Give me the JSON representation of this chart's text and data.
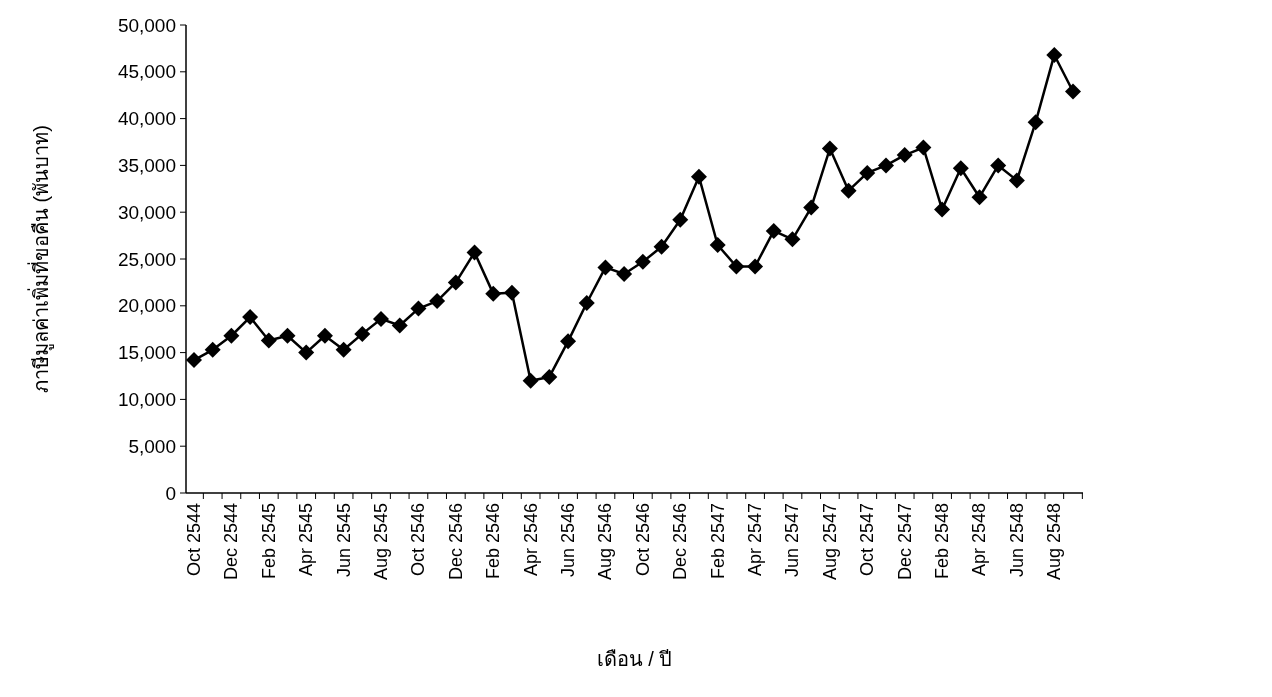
{
  "chart_data": {
    "type": "line",
    "xlabel": "เดือน / ปี",
    "ylabel": "ภาษีมูลค่าเพิ่มที่ขอคืน (พันบาท)",
    "categories": [
      "Oct 2544",
      null,
      "Dec 2544",
      null,
      "Feb 2545",
      null,
      "Apr 2545",
      null,
      "Jun 2545",
      null,
      "Aug 2545",
      null,
      "Oct 2546",
      null,
      "Dec 2546",
      null,
      "Feb 2546",
      null,
      "Apr 2546",
      null,
      "Jun 2546",
      null,
      "Aug 2546",
      null,
      "Oct 2546",
      null,
      "Dec 2546",
      null,
      "Feb 2547",
      null,
      "Apr 2547",
      null,
      "Jun 2547",
      null,
      "Aug 2547",
      null,
      "Oct 2547",
      null,
      "Dec 2547",
      null,
      "Feb 2548",
      null,
      "Apr 2548",
      null,
      "Jun 2548",
      null,
      "Aug 2548",
      null
    ],
    "series": [
      {
        "color": "#000000",
        "values": [
          14200,
          15300,
          16800,
          18800,
          16300,
          16800,
          15000,
          16800,
          15300,
          17000,
          18600,
          17900,
          19700,
          20500,
          22500,
          25700,
          21300,
          21400,
          12000,
          12400,
          16200,
          20300,
          24100,
          23400,
          24700,
          26300,
          29200,
          33800,
          26500,
          24200,
          24200,
          28000,
          27100,
          30500,
          36800,
          32300,
          34200,
          35000,
          36100,
          36900,
          30300,
          34700,
          31600,
          35000,
          33400,
          39600,
          46800,
          42900
        ]
      }
    ],
    "ylim": [
      0,
      50000
    ],
    "yticks": [
      {
        "value": 0,
        "label": "0"
      },
      {
        "value": 5000,
        "label": "5,000"
      },
      {
        "value": 10000,
        "label": "10,000"
      },
      {
        "value": 15000,
        "label": "15,000"
      },
      {
        "value": 20000,
        "label": "20,000"
      },
      {
        "value": 25000,
        "label": "25,000"
      },
      {
        "value": 30000,
        "label": "30,000"
      },
      {
        "value": 35000,
        "label": "35,000"
      },
      {
        "value": 40000,
        "label": "40,000"
      },
      {
        "value": 45000,
        "label": "45,000"
      },
      {
        "value": 50000,
        "label": "50,000"
      }
    ],
    "marker": "diamond",
    "line_style": "solid",
    "grid": false
  }
}
